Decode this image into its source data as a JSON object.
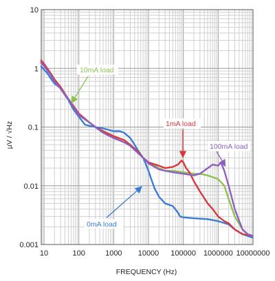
{
  "chart_data": {
    "type": "line",
    "title": "",
    "xlabel": "FREQUENCY (Hz)",
    "ylabel": "µV / √Hz",
    "xscale": "log",
    "yscale": "log",
    "xlim": [
      10,
      10000000
    ],
    "ylim": [
      0.001,
      10
    ],
    "grid": true,
    "x_tick_labels": [
      "10",
      "100",
      "1000",
      "10000",
      "100000",
      "1000000",
      "10000000"
    ],
    "y_tick_labels": [
      "0.001",
      "0.01",
      "0.1",
      "1",
      "10"
    ],
    "series": [
      {
        "name": "0mA load",
        "color": "#3a7bd5",
        "points": [
          [
            8,
            1.1
          ],
          [
            10,
            0.95
          ],
          [
            12,
            0.85
          ],
          [
            15,
            0.7
          ],
          [
            20,
            0.55
          ],
          [
            25,
            0.5
          ],
          [
            30,
            0.45
          ],
          [
            40,
            0.35
          ],
          [
            50,
            0.29
          ],
          [
            70,
            0.2
          ],
          [
            100,
            0.15
          ],
          [
            150,
            0.11
          ],
          [
            200,
            0.105
          ],
          [
            300,
            0.1
          ],
          [
            500,
            0.095
          ],
          [
            700,
            0.09
          ],
          [
            1000,
            0.085
          ],
          [
            1500,
            0.085
          ],
          [
            2000,
            0.08
          ],
          [
            3000,
            0.065
          ],
          [
            4000,
            0.05
          ],
          [
            5000,
            0.04
          ],
          [
            7000,
            0.03
          ],
          [
            8000,
            0.025
          ],
          [
            10000,
            0.018
          ],
          [
            12000,
            0.013
          ],
          [
            15000,
            0.009
          ],
          [
            20000,
            0.0065
          ],
          [
            30000,
            0.005
          ],
          [
            50000,
            0.0045
          ],
          [
            70000,
            0.0035
          ],
          [
            80000,
            0.003
          ],
          [
            100000,
            0.0029
          ],
          [
            200000,
            0.0028
          ],
          [
            500000,
            0.0027
          ],
          [
            1000000,
            0.0025
          ],
          [
            2000000,
            0.0022
          ],
          [
            3000000,
            0.0018
          ],
          [
            5000000,
            0.0015
          ],
          [
            7000000,
            0.0014
          ],
          [
            10000000,
            0.0013
          ]
        ]
      },
      {
        "name": "10mA load",
        "color": "#8cc152",
        "points": [
          [
            8,
            1.25
          ],
          [
            10,
            1.1
          ],
          [
            15,
            0.8
          ],
          [
            20,
            0.6
          ],
          [
            30,
            0.45
          ],
          [
            50,
            0.3
          ],
          [
            70,
            0.22
          ],
          [
            100,
            0.16
          ],
          [
            200,
            0.12
          ],
          [
            300,
            0.1
          ],
          [
            500,
            0.08
          ],
          [
            1000,
            0.065
          ],
          [
            2000,
            0.055
          ],
          [
            3000,
            0.05
          ],
          [
            5000,
            0.038
          ],
          [
            7000,
            0.03
          ],
          [
            10000,
            0.025
          ],
          [
            20000,
            0.02
          ],
          [
            30000,
            0.018
          ],
          [
            50000,
            0.018
          ],
          [
            100000,
            0.017
          ],
          [
            200000,
            0.016
          ],
          [
            300000,
            0.016
          ],
          [
            500000,
            0.015
          ],
          [
            700000,
            0.014
          ],
          [
            1000000,
            0.013
          ],
          [
            1500000,
            0.01
          ],
          [
            2000000,
            0.006
          ],
          [
            3000000,
            0.003
          ],
          [
            5000000,
            0.0018
          ],
          [
            7000000,
            0.0015
          ],
          [
            10000000,
            0.0014
          ]
        ]
      },
      {
        "name": "1mA load",
        "color": "#d9363e",
        "points": [
          [
            8,
            1.4
          ],
          [
            10,
            1.2
          ],
          [
            15,
            0.85
          ],
          [
            20,
            0.65
          ],
          [
            30,
            0.48
          ],
          [
            50,
            0.3
          ],
          [
            70,
            0.23
          ],
          [
            100,
            0.17
          ],
          [
            200,
            0.12
          ],
          [
            300,
            0.1
          ],
          [
            500,
            0.085
          ],
          [
            1000,
            0.07
          ],
          [
            2000,
            0.06
          ],
          [
            3000,
            0.05
          ],
          [
            5000,
            0.038
          ],
          [
            7000,
            0.03
          ],
          [
            10000,
            0.025
          ],
          [
            20000,
            0.022
          ],
          [
            30000,
            0.02
          ],
          [
            50000,
            0.021
          ],
          [
            70000,
            0.023
          ],
          [
            90000,
            0.027
          ],
          [
            100000,
            0.025
          ],
          [
            120000,
            0.02
          ],
          [
            150000,
            0.017
          ],
          [
            200000,
            0.012
          ],
          [
            300000,
            0.008
          ],
          [
            500000,
            0.005
          ],
          [
            700000,
            0.004
          ],
          [
            1000000,
            0.003
          ],
          [
            1500000,
            0.0025
          ],
          [
            2000000,
            0.0023
          ],
          [
            3000000,
            0.0018
          ],
          [
            5000000,
            0.0015
          ],
          [
            10000000,
            0.0014
          ]
        ]
      },
      {
        "name": "100mA load",
        "color": "#8e5fc0",
        "points": [
          [
            8,
            1.3
          ],
          [
            10,
            1.1
          ],
          [
            15,
            0.8
          ],
          [
            20,
            0.6
          ],
          [
            30,
            0.45
          ],
          [
            50,
            0.3
          ],
          [
            70,
            0.22
          ],
          [
            100,
            0.16
          ],
          [
            200,
            0.12
          ],
          [
            300,
            0.1
          ],
          [
            500,
            0.08
          ],
          [
            1000,
            0.065
          ],
          [
            2000,
            0.055
          ],
          [
            3000,
            0.048
          ],
          [
            5000,
            0.036
          ],
          [
            7000,
            0.03
          ],
          [
            10000,
            0.024
          ],
          [
            20000,
            0.019
          ],
          [
            30000,
            0.018
          ],
          [
            50000,
            0.017
          ],
          [
            100000,
            0.016
          ],
          [
            200000,
            0.015
          ],
          [
            300000,
            0.016
          ],
          [
            500000,
            0.02
          ],
          [
            700000,
            0.023
          ],
          [
            1000000,
            0.022
          ],
          [
            1200000,
            0.025
          ],
          [
            1500000,
            0.018
          ],
          [
            2000000,
            0.01
          ],
          [
            3000000,
            0.004
          ],
          [
            5000000,
            0.0018
          ],
          [
            7000000,
            0.0015
          ],
          [
            10000000,
            0.0014
          ]
        ]
      }
    ],
    "annotations": [
      {
        "text": "10mA load",
        "color": "#8cc152"
      },
      {
        "text": "1mA load",
        "color": "#d9363e"
      },
      {
        "text": "100mA load",
        "color": "#8e5fc0"
      },
      {
        "text": "0mA load",
        "color": "#3a7bd5"
      }
    ]
  }
}
